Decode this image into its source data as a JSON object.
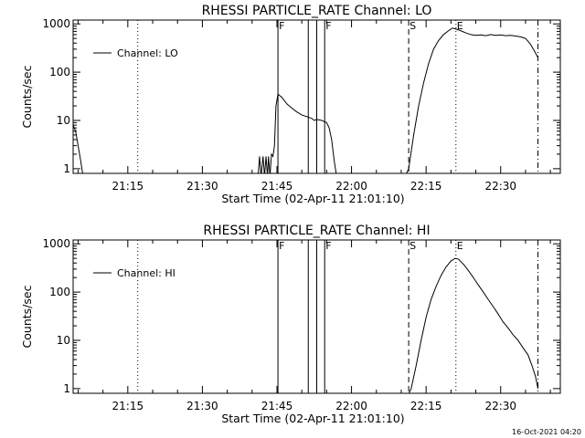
{
  "footer_timestamp": "16-Oct-2021 04:20",
  "chart_data": [
    {
      "type": "line",
      "title": "RHESSI PARTICLE_RATE Channel: LO",
      "xlabel": "Start Time (02-Apr-11 21:01:10)",
      "ylabel": "Counts/sec",
      "yscale": "log",
      "ylim": [
        0.8,
        1200
      ],
      "xlim": [
        "21:04",
        "22:42"
      ],
      "yticks": [
        {
          "v": 1,
          "label": "1"
        },
        {
          "v": 10,
          "label": "10"
        },
        {
          "v": 100,
          "label": "100"
        },
        {
          "v": 1000,
          "label": "1000"
        }
      ],
      "xticks": [
        {
          "t": "21:15",
          "label": "21:15"
        },
        {
          "t": "21:30",
          "label": "21:30"
        },
        {
          "t": "21:45",
          "label": "21:45"
        },
        {
          "t": "22:00",
          "label": "22:00"
        },
        {
          "t": "22:15",
          "label": "22:15"
        },
        {
          "t": "22:30",
          "label": "22:30"
        }
      ],
      "legend": {
        "label": "Channel: LO",
        "placement": "top-left"
      },
      "grid": false,
      "markers": [
        {
          "t": "21:17",
          "style": "dotted",
          "label": ""
        },
        {
          "t": "21:45.2",
          "style": "solid",
          "label": "F"
        },
        {
          "t": "21:51.3",
          "style": "solid",
          "label": ""
        },
        {
          "t": "21:53",
          "style": "solid",
          "label": ""
        },
        {
          "t": "21:54.6",
          "style": "solid",
          "label": "F"
        },
        {
          "t": "22:11.5",
          "style": "dashed",
          "label": "S"
        },
        {
          "t": "22:21",
          "style": "dotted",
          "label": "E"
        },
        {
          "t": "22:37.5",
          "style": "dashdot",
          "label": ""
        }
      ],
      "series": [
        {
          "name": "Channel: LO",
          "segments": [
            [
              [
                "21:04",
                8
              ],
              [
                "21:04.5",
                6
              ],
              [
                "21:05",
                3
              ],
              [
                "21:05.5",
                1.5
              ],
              [
                "21:06",
                0.7
              ]
            ],
            [
              [
                "21:41.2",
                0.7
              ],
              [
                "21:41.5",
                1.8
              ],
              [
                "21:41.8",
                0.7
              ],
              [
                "21:42.2",
                1.8
              ],
              [
                "21:42.5",
                0.7
              ],
              [
                "21:42.8",
                1.8
              ],
              [
                "21:43.1",
                0.7
              ],
              [
                "21:43.3",
                1.8
              ],
              [
                "21:43.6",
                0.7
              ],
              [
                "21:43.9",
                2
              ],
              [
                "21:44.2",
                1.8
              ],
              [
                "21:44.5",
                3
              ],
              [
                "21:44.8",
                20
              ],
              [
                "21:45.2",
                35
              ],
              [
                "21:46",
                30
              ],
              [
                "21:47",
                22
              ],
              [
                "21:48",
                18
              ],
              [
                "21:49",
                15
              ],
              [
                "21:50",
                13
              ],
              [
                "21:51",
                12
              ],
              [
                "21:52",
                11
              ],
              [
                "21:52.5",
                10
              ],
              [
                "21:53",
                10.5
              ],
              [
                "21:54",
                10
              ],
              [
                "21:55",
                9
              ],
              [
                "21:55.5",
                7
              ],
              [
                "21:56",
                4
              ],
              [
                "21:56.5",
                1.5
              ],
              [
                "21:57",
                0.7
              ]
            ],
            [
              [
                "22:10.8",
                0.7
              ],
              [
                "22:11.5",
                1
              ],
              [
                "22:12.5",
                5
              ],
              [
                "22:13.5",
                20
              ],
              [
                "22:14.5",
                60
              ],
              [
                "22:15.5",
                150
              ],
              [
                "22:16.5",
                300
              ],
              [
                "22:17.5",
                450
              ],
              [
                "22:18.5",
                600
              ],
              [
                "22:19.5",
                720
              ],
              [
                "22:20.3",
                820
              ],
              [
                "22:21",
                780
              ],
              [
                "22:22",
                720
              ],
              [
                "22:23",
                650
              ],
              [
                "22:24",
                600
              ],
              [
                "22:25",
                580
              ],
              [
                "22:26",
                590
              ],
              [
                "22:27",
                570
              ],
              [
                "22:28",
                600
              ],
              [
                "22:29",
                580
              ],
              [
                "22:30",
                590
              ],
              [
                "22:31",
                570
              ],
              [
                "22:32",
                580
              ],
              [
                "22:33",
                560
              ],
              [
                "22:34",
                540
              ],
              [
                "22:35",
                500
              ],
              [
                "22:36",
                380
              ],
              [
                "22:37",
                250
              ],
              [
                "22:37.5",
                200
              ]
            ]
          ]
        }
      ]
    },
    {
      "type": "line",
      "title": "RHESSI PARTICLE_RATE Channel: HI",
      "xlabel": "Start Time (02-Apr-11 21:01:10)",
      "ylabel": "Counts/sec",
      "yscale": "log",
      "ylim": [
        0.8,
        1200
      ],
      "xlim": [
        "21:04",
        "22:42"
      ],
      "yticks": [
        {
          "v": 1,
          "label": "1"
        },
        {
          "v": 10,
          "label": "10"
        },
        {
          "v": 100,
          "label": "100"
        },
        {
          "v": 1000,
          "label": "1000"
        }
      ],
      "xticks": [
        {
          "t": "21:15",
          "label": "21:15"
        },
        {
          "t": "21:30",
          "label": "21:30"
        },
        {
          "t": "21:45",
          "label": "21:45"
        },
        {
          "t": "22:00",
          "label": "22:00"
        },
        {
          "t": "22:15",
          "label": "22:15"
        },
        {
          "t": "22:30",
          "label": "22:30"
        }
      ],
      "legend": {
        "label": "Channel: HI",
        "placement": "top-left"
      },
      "grid": false,
      "markers": [
        {
          "t": "21:17",
          "style": "dotted",
          "label": ""
        },
        {
          "t": "21:45.2",
          "style": "solid",
          "label": "F"
        },
        {
          "t": "21:51.3",
          "style": "solid",
          "label": ""
        },
        {
          "t": "21:53",
          "style": "solid",
          "label": ""
        },
        {
          "t": "21:54.6",
          "style": "solid",
          "label": "F"
        },
        {
          "t": "22:11.5",
          "style": "dashed",
          "label": "S"
        },
        {
          "t": "22:21",
          "style": "dotted",
          "label": "E"
        },
        {
          "t": "22:37.5",
          "style": "dashdot",
          "label": ""
        }
      ],
      "series": [
        {
          "name": "Channel: HI",
          "segments": [
            [
              [
                "22:11.3",
                0.7
              ],
              [
                "22:12",
                1
              ],
              [
                "22:13",
                3
              ],
              [
                "22:14",
                10
              ],
              [
                "22:15",
                30
              ],
              [
                "22:16",
                70
              ],
              [
                "22:17",
                130
              ],
              [
                "22:18",
                220
              ],
              [
                "22:19",
                330
              ],
              [
                "22:20",
                440
              ],
              [
                "22:20.8",
                500
              ],
              [
                "22:21.5",
                480
              ],
              [
                "22:22.5",
                380
              ],
              [
                "22:23.5",
                280
              ],
              [
                "22:24.5",
                200
              ],
              [
                "22:25.5",
                140
              ],
              [
                "22:26.5",
                100
              ],
              [
                "22:27.5",
                70
              ],
              [
                "22:28.5",
                50
              ],
              [
                "22:29.5",
                35
              ],
              [
                "22:30.5",
                24
              ],
              [
                "22:31.5",
                18
              ],
              [
                "22:32.5",
                13
              ],
              [
                "22:33.5",
                10
              ],
              [
                "22:34.5",
                7
              ],
              [
                "22:35.5",
                5
              ],
              [
                "22:36.3",
                3
              ],
              [
                "22:37",
                1.8
              ],
              [
                "22:37.5",
                1
              ]
            ]
          ]
        }
      ]
    }
  ]
}
